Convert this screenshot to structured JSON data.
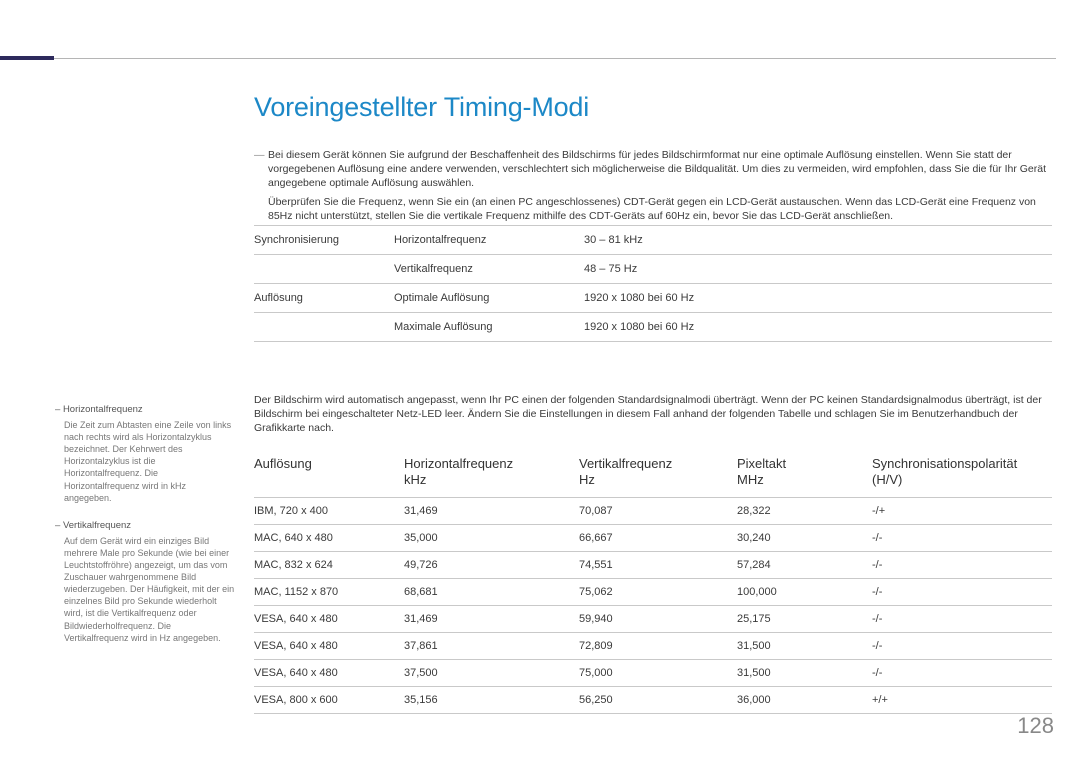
{
  "page": {
    "title": "Voreingestellter Timing-Modi",
    "number": "128",
    "title_color": "#1c88c7",
    "accent_color": "#2d2a5c"
  },
  "intro": {
    "p1": "Bei diesem Gerät können Sie aufgrund der Beschaffenheit des Bildschirms für jedes Bildschirmformat nur eine optimale Auflösung einstellen. Wenn Sie statt der vorgegebenen Auflösung eine andere verwenden, verschlechtert sich möglicherweise die Bildqualität. Um dies zu vermeiden, wird empfohlen, dass Sie die für Ihr Gerät angegebene optimale Auflösung auswählen.",
    "p2": "Überprüfen Sie die Frequenz, wenn Sie ein (an einen PC angeschlossenes) CDT-Gerät gegen ein LCD-Gerät austauschen. Wenn das LCD-Gerät eine Frequenz von 85Hz nicht unterstützt, stellen Sie die vertikale Frequenz mithilfe des CDT-Geräts auf 60Hz ein, bevor Sie das LCD-Gerät anschließen."
  },
  "spec": {
    "rows": [
      {
        "a": "Synchronisierung",
        "b": "Horizontalfrequenz",
        "c": "30 – 81 kHz"
      },
      {
        "a": "",
        "b": "Vertikalfrequenz",
        "c": "48 – 75 Hz"
      },
      {
        "a": "Auflösung",
        "b": "Optimale Auflösung",
        "c": "1920 x 1080 bei 60 Hz"
      },
      {
        "a": "",
        "b": "Maximale Auflösung",
        "c": "1920 x 1080 bei 60 Hz"
      }
    ]
  },
  "mid_text": "Der Bildschirm wird automatisch angepasst, wenn Ihr PC einen der folgenden Standardsignalmodi überträgt. Wenn der PC keinen Standardsignalmodus überträgt, ist der Bildschirm bei eingeschalteter Netz-LED leer. Ändern Sie die Einstellungen in diesem Fall anhand der folgenden Tabelle und schlagen Sie im Benutzerhandbuch der Grafikkarte nach.",
  "timing": {
    "headers": {
      "c1": "Auflösung",
      "c2": "Horizontalfrequenz",
      "c2b": "kHz",
      "c3": "Vertikalfrequenz",
      "c3b": "Hz",
      "c4": "Pixeltakt",
      "c4b": "MHz",
      "c5": "Synchronisationspolarität",
      "c5b": "(H/V)"
    },
    "rows": [
      {
        "res": "IBM, 720 x 400",
        "hf": "31,469",
        "vf": "70,087",
        "pt": "28,322",
        "pol": "-/+"
      },
      {
        "res": "MAC, 640 x 480",
        "hf": "35,000",
        "vf": "66,667",
        "pt": "30,240",
        "pol": "-/-"
      },
      {
        "res": "MAC, 832 x 624",
        "hf": "49,726",
        "vf": "74,551",
        "pt": "57,284",
        "pol": "-/-"
      },
      {
        "res": "MAC, 1152 x 870",
        "hf": "68,681",
        "vf": "75,062",
        "pt": "100,000",
        "pol": "-/-"
      },
      {
        "res": "VESA, 640 x 480",
        "hf": "31,469",
        "vf": "59,940",
        "pt": "25,175",
        "pol": "-/-"
      },
      {
        "res": "VESA, 640 x 480",
        "hf": "37,861",
        "vf": "72,809",
        "pt": "31,500",
        "pol": "-/-"
      },
      {
        "res": "VESA, 640 x 480",
        "hf": "37,500",
        "vf": "75,000",
        "pt": "31,500",
        "pol": "-/-"
      },
      {
        "res": "VESA, 800 x 600",
        "hf": "35,156",
        "vf": "56,250",
        "pt": "36,000",
        "pol": "+/+"
      }
    ]
  },
  "sidebar": {
    "items": [
      {
        "title": "Horizontalfrequenz",
        "body": "Die Zeit zum Abtasten eine Zeile von links nach rechts wird als Horizontalzyklus bezeichnet. Der Kehrwert des Horizontalzyklus ist die Horizontalfrequenz. Die Horizontalfrequenz wird in kHz angegeben."
      },
      {
        "title": "Vertikalfrequenz",
        "body": "Auf dem Gerät wird ein einziges Bild mehrere Male pro Sekunde (wie bei einer Leuchtstoffröhre) angezeigt, um das vom Zuschauer wahrgenommene Bild wiederzugeben. Der Häufigkeit, mit der ein einzelnes Bild pro Sekunde wiederholt wird, ist die Vertikalfrequenz oder Bildwiederholfrequenz. Die Vertikalfrequenz wird in Hz angegeben."
      }
    ]
  }
}
